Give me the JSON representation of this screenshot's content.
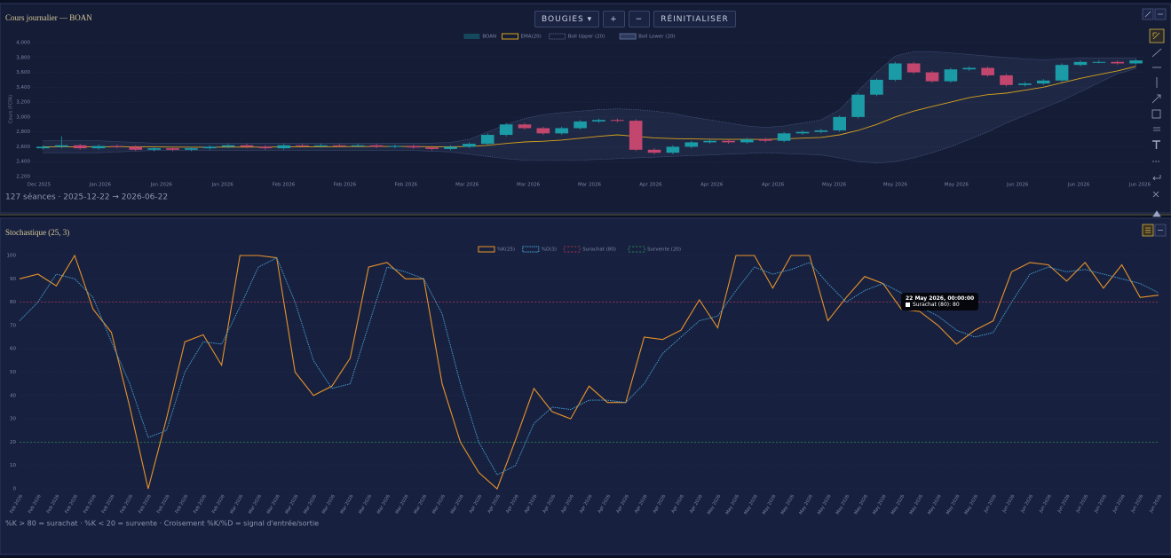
{
  "header": {
    "toolbar": [
      "BOUGIES ▾",
      "+",
      "−",
      "RÉINITIALISER"
    ]
  },
  "chart_data": [
    {
      "type": "candlestick",
      "title": "Cours journalier — BOAN",
      "ylabel": "Cours (FCFA)",
      "footer": "127 séances · 2025-12-22 → 2026-06-22",
      "xtick_labels": [
        "Dec 2025",
        "Jan 2026",
        "Jan 2026",
        "Jan 2026",
        "Feb 2026",
        "Feb 2026",
        "Feb 2026",
        "Mar 2026",
        "Mar 2026",
        "Mar 2026",
        "Apr 2026",
        "Apr 2026",
        "Apr 2026",
        "May 2026",
        "May 2026",
        "May 2026",
        "Jun 2026",
        "Jun 2026",
        "Jun 2026"
      ],
      "ylim": [
        2200,
        4000
      ],
      "yticks": [
        {
          "value": 2200,
          "label": "2,200"
        },
        {
          "value": 2400,
          "label": "2,400"
        },
        {
          "value": 2600,
          "label": "2,600"
        },
        {
          "value": 2800,
          "label": "2,800"
        },
        {
          "value": 3000,
          "label": "3,000"
        },
        {
          "value": 3200,
          "label": "3,200"
        },
        {
          "value": 3400,
          "label": "3,400"
        },
        {
          "value": 3600,
          "label": "3,600"
        },
        {
          "value": 3800,
          "label": "3,800"
        },
        {
          "value": 4000,
          "label": "4,000"
        }
      ],
      "grid": true,
      "series": [
        {
          "name": "BOAN",
          "color_up": "#1b9ba6",
          "color_down": "#c2466d",
          "open": [
            2580,
            2600,
            2620,
            2580,
            2610,
            2600,
            2560,
            2580,
            2560,
            2580,
            2600,
            2620,
            2600,
            2580,
            2620,
            2610,
            2620,
            2610,
            2620,
            2600,
            2610,
            2590,
            2570,
            2600,
            2640,
            2760,
            2900,
            2850,
            2780,
            2850,
            2940,
            2960,
            2950,
            2560,
            2520,
            2600,
            2660,
            2680,
            2660,
            2700,
            2680,
            2780,
            2800,
            2820,
            3000,
            3300,
            3500,
            3720,
            3600,
            3480,
            3640,
            3660,
            3560,
            3430,
            3450,
            3490,
            3700,
            3740,
            3740,
            3720
          ],
          "high": [
            2620,
            2740,
            2640,
            2630,
            2630,
            2620,
            2600,
            2600,
            2600,
            2620,
            2640,
            2640,
            2620,
            2640,
            2640,
            2640,
            2640,
            2640,
            2640,
            2630,
            2630,
            2610,
            2620,
            2660,
            2780,
            2920,
            2920,
            2870,
            2870,
            2960,
            2980,
            2980,
            2970,
            2580,
            2620,
            2680,
            2700,
            2700,
            2720,
            2720,
            2800,
            2820,
            2840,
            3020,
            3320,
            3520,
            3740,
            3740,
            3620,
            3660,
            3680,
            3680,
            3580,
            3470,
            3510,
            3720,
            3760,
            3760,
            3760,
            3780
          ],
          "low": [
            2560,
            2580,
            2560,
            2560,
            2580,
            2540,
            2540,
            2540,
            2540,
            2560,
            2580,
            2580,
            2560,
            2560,
            2590,
            2590,
            2590,
            2590,
            2580,
            2580,
            2570,
            2550,
            2550,
            2580,
            2620,
            2740,
            2830,
            2760,
            2760,
            2830,
            2920,
            2930,
            2540,
            2500,
            2500,
            2580,
            2640,
            2640,
            2640,
            2660,
            2660,
            2760,
            2780,
            2800,
            2980,
            3280,
            3480,
            3580,
            3460,
            3460,
            3620,
            3540,
            3410,
            3410,
            3430,
            3470,
            3680,
            3720,
            3700,
            3700
          ],
          "close": [
            2600,
            2620,
            2580,
            2610,
            2600,
            2560,
            2580,
            2560,
            2580,
            2600,
            2620,
            2600,
            2580,
            2620,
            2610,
            2620,
            2610,
            2620,
            2600,
            2610,
            2590,
            2570,
            2600,
            2640,
            2760,
            2900,
            2850,
            2780,
            2850,
            2940,
            2960,
            2950,
            2560,
            2520,
            2600,
            2660,
            2680,
            2660,
            2700,
            2680,
            2780,
            2800,
            2820,
            3000,
            3300,
            3500,
            3720,
            3600,
            3480,
            3640,
            3660,
            3560,
            3430,
            3450,
            3490,
            3700,
            3740,
            3740,
            3720,
            3760
          ]
        },
        {
          "name": "EMA(20)",
          "color": "#d9a21b",
          "values": [
            2600,
            2600,
            2600,
            2600,
            2600,
            2600,
            2598,
            2596,
            2594,
            2594,
            2596,
            2596,
            2596,
            2598,
            2600,
            2601,
            2602,
            2603,
            2603,
            2604,
            2603,
            2600,
            2600,
            2604,
            2620,
            2645,
            2665,
            2675,
            2690,
            2715,
            2740,
            2760,
            2740,
            2720,
            2710,
            2705,
            2702,
            2700,
            2700,
            2698,
            2706,
            2716,
            2726,
            2760,
            2820,
            2900,
            3000,
            3080,
            3140,
            3200,
            3260,
            3300,
            3320,
            3360,
            3400,
            3460,
            3520,
            3570,
            3620,
            3680
          ]
        },
        {
          "name": "Boll Upper (20)",
          "color": "#5a6a94",
          "values": [
            2680,
            2680,
            2680,
            2680,
            2670,
            2660,
            2650,
            2650,
            2650,
            2650,
            2650,
            2650,
            2650,
            2650,
            2650,
            2650,
            2650,
            2650,
            2650,
            2650,
            2650,
            2650,
            2660,
            2700,
            2800,
            2900,
            2980,
            3030,
            3060,
            3080,
            3100,
            3110,
            3100,
            3080,
            3050,
            3000,
            2960,
            2920,
            2880,
            2860,
            2880,
            2920,
            2960,
            3100,
            3350,
            3600,
            3820,
            3880,
            3880,
            3860,
            3840,
            3820,
            3800,
            3780,
            3770,
            3780,
            3790,
            3790,
            3790,
            3790
          ]
        },
        {
          "name": "Boll Lower (20)",
          "color": "#5a6a94",
          "values": [
            2520,
            2520,
            2520,
            2520,
            2530,
            2540,
            2550,
            2550,
            2550,
            2550,
            2550,
            2550,
            2550,
            2550,
            2550,
            2550,
            2550,
            2550,
            2550,
            2550,
            2550,
            2540,
            2530,
            2500,
            2470,
            2440,
            2420,
            2420,
            2420,
            2420,
            2430,
            2440,
            2450,
            2460,
            2470,
            2480,
            2490,
            2500,
            2510,
            2520,
            2510,
            2500,
            2490,
            2450,
            2400,
            2380,
            2400,
            2450,
            2520,
            2600,
            2700,
            2800,
            2920,
            3020,
            3120,
            3220,
            3340,
            3460,
            3580,
            3650
          ]
        }
      ]
    },
    {
      "type": "line",
      "title": "Stochastique (25, 3)",
      "footer": "%K > 80 = surachat · %K < 20 = survente · Croisement %K/%D = signal d'entrée/sortie",
      "categories": [
        "Feb 2026",
        "Feb 2026",
        "Feb 2026",
        "Feb 2026",
        "Feb 2026",
        "Feb 2026",
        "Feb 2026",
        "Feb 2026",
        "Feb 2026",
        "Feb 2026",
        "Feb 2026",
        "Feb 2026",
        "Mar 2026",
        "Mar 2026",
        "Mar 2026",
        "Mar 2026",
        "Mar 2026",
        "Mar 2026",
        "Mar 2026",
        "Mar 2026",
        "Mar 2026",
        "Mar 2026",
        "Mar 2026",
        "Mar 2026",
        "Mar 2026",
        "Apr 2026",
        "Apr 2026",
        "Apr 2026",
        "Apr 2026",
        "Apr 2026",
        "Apr 2026",
        "Apr 2026",
        "Apr 2026",
        "Apr 2026",
        "Apr 2026",
        "Apr 2026",
        "Apr 2026",
        "Apr 2026",
        "May 2026",
        "May 2026",
        "May 2026",
        "May 2026",
        "May 2026",
        "May 2026",
        "May 2026",
        "May 2026",
        "May 2026",
        "May 2026",
        "May 2026",
        "May 2026",
        "May 2026",
        "May 2026",
        "May 2026",
        "Jun 2026",
        "Jun 2026",
        "Jun 2026",
        "Jun 2026",
        "Jun 2026",
        "Jun 2026",
        "Jun 2026",
        "Jun 2026",
        "Jun 2026",
        "Jun 2026"
      ],
      "ylim": [
        0,
        100
      ],
      "yticks": [
        0,
        10,
        20,
        30,
        40,
        50,
        60,
        70,
        80,
        90,
        100
      ],
      "grid": true,
      "series": [
        {
          "name": "%K(25)",
          "color": "#e8922a",
          "dashed": false,
          "values": [
            90,
            92,
            87,
            100,
            77,
            67,
            35,
            0,
            30,
            63,
            66,
            53,
            100,
            100,
            99,
            50,
            40,
            44,
            56,
            95,
            97,
            90,
            90,
            45,
            20,
            7,
            0,
            21,
            43,
            33,
            30,
            44,
            37,
            37,
            65,
            64,
            68,
            81,
            69,
            100,
            100,
            86,
            100,
            100,
            72,
            82,
            91,
            88,
            77,
            76,
            70,
            62,
            68,
            72,
            93,
            97,
            96,
            89,
            97,
            86,
            96,
            82,
            83
          ]
        },
        {
          "name": "%D(3)",
          "color": "#4aa3d8",
          "dashed": true,
          "values": [
            72,
            80,
            92,
            90,
            82,
            63,
            45,
            22,
            25,
            50,
            63,
            62,
            78,
            95,
            99,
            80,
            55,
            43,
            45,
            70,
            95,
            93,
            90,
            75,
            45,
            20,
            6,
            10,
            28,
            35,
            34,
            38,
            38,
            37,
            45,
            58,
            65,
            72,
            74,
            85,
            95,
            92,
            94,
            97,
            88,
            80,
            85,
            88,
            84,
            78,
            74,
            68,
            65,
            67,
            80,
            92,
            95,
            93,
            94,
            92,
            90,
            88,
            84
          ]
        }
      ],
      "reference_lines": [
        {
          "name": "Surachat (80)",
          "value": 80,
          "color": "#a8304c"
        },
        {
          "name": "Survente (20)",
          "value": 20,
          "color": "#2a8552"
        }
      ],
      "tooltip": {
        "title": "22 May 2026, 00:00:00",
        "text": "Surachat (80): 80"
      }
    }
  ]
}
